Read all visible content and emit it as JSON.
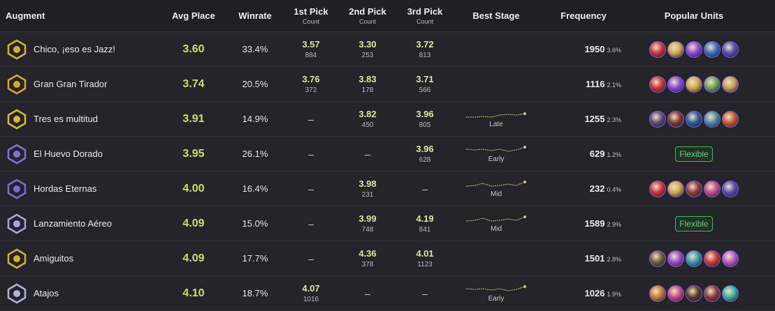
{
  "header": {
    "augment": "Augment",
    "avg_place": "Avg Place",
    "winrate": "Winrate",
    "pick1": "1st Pick",
    "pick1_sub": "Count",
    "pick2": "2nd Pick",
    "pick2_sub": "Count",
    "pick3": "3rd Pick",
    "pick3_sub": "Count",
    "best_stage": "Best Stage",
    "frequency": "Frequency",
    "popular_units": "Popular Units"
  },
  "rows": [
    {
      "name": "Chico, ¡eso es Jazz!",
      "avg": "3.60",
      "win": "33.4%",
      "p1": "3.57",
      "c1": "884",
      "p2": "3.30",
      "c2": "253",
      "p3": "3.72",
      "c3": "813",
      "stage": "",
      "freq": "1950",
      "freq_pct": "3.6%",
      "flexible": "",
      "units": [
        "#c8343a",
        "#d0a850",
        "#8a4ad8",
        "#3a6cc0",
        "#5a4ab0"
      ]
    },
    {
      "name": "Gran Gran Tirador",
      "avg": "3.74",
      "win": "20.5%",
      "p1": "3.76",
      "c1": "372",
      "p2": "3.83",
      "c2": "178",
      "p3": "3.71",
      "c3": "566",
      "stage": "",
      "freq": "1116",
      "freq_pct": "2.1%",
      "flexible": "",
      "units": [
        "#c8343a",
        "#8a4ad8",
        "#d0a850",
        "#6aa060",
        "#c89a60"
      ]
    },
    {
      "name": "Tres es multitud",
      "avg": "3.91",
      "win": "14.9%",
      "p1": "–",
      "c1": "",
      "p2": "3.82",
      "c2": "450",
      "p3": "3.96",
      "c3": "805",
      "stage": "Late",
      "freq": "1255",
      "freq_pct": "2.3%",
      "flexible": "",
      "units": [
        "#5a4a7a",
        "#7a3a2a",
        "#2a5aa0",
        "#4a8aa8",
        "#c85a2a"
      ]
    },
    {
      "name": "El Huevo Dorado",
      "avg": "3.95",
      "win": "26.1%",
      "p1": "–",
      "c1": "",
      "p2": "–",
      "c2": "",
      "p3": "3.96",
      "c3": "628",
      "stage": "Early",
      "freq": "629",
      "freq_pct": "1.2%",
      "flexible": "Flexible",
      "units": []
    },
    {
      "name": "Hordas Eternas",
      "avg": "4.00",
      "win": "16.4%",
      "p1": "–",
      "c1": "",
      "p2": "3.98",
      "c2": "231",
      "p3": "–",
      "c3": "",
      "stage": "Mid",
      "freq": "232",
      "freq_pct": "0.4%",
      "flexible": "",
      "units": [
        "#c8343a",
        "#d0a850",
        "#8a3a3a",
        "#c84a8a",
        "#5a4ab0"
      ]
    },
    {
      "name": "Lanzamiento Aéreo",
      "avg": "4.09",
      "win": "15.0%",
      "p1": "–",
      "c1": "",
      "p2": "3.99",
      "c2": "748",
      "p3": "4.19",
      "c3": "841",
      "stage": "Mid",
      "freq": "1589",
      "freq_pct": "2.9%",
      "flexible": "Flexible",
      "units": []
    },
    {
      "name": "Amiguitos",
      "avg": "4.09",
      "win": "17.7%",
      "p1": "–",
      "c1": "",
      "p2": "4.36",
      "c2": "378",
      "p3": "4.01",
      "c3": "1123",
      "stage": "",
      "freq": "1501",
      "freq_pct": "2.8%",
      "flexible": "",
      "units": [
        "#6a5a3a",
        "#9a4ac8",
        "#3a9ab0",
        "#c83a3a",
        "#b85ac8"
      ]
    },
    {
      "name": "Atajos",
      "avg": "4.10",
      "win": "18.7%",
      "p1": "4.07",
      "c1": "1016",
      "p2": "–",
      "c2": "",
      "p3": "–",
      "c3": "",
      "stage": "Early",
      "freq": "1026",
      "freq_pct": "1.9%",
      "flexible": "",
      "units": [
        "#c87a3a",
        "#c84a8a",
        "#5a3a2a",
        "#8a3a3a",
        "#3ab0a0"
      ]
    }
  ],
  "icons": [
    "jazz-augment-icon",
    "tirador-augment-icon",
    "tres-augment-icon",
    "huevo-augment-icon",
    "hordas-augment-icon",
    "lanzamiento-augment-icon",
    "amiguitos-augment-icon",
    "atajos-augment-icon"
  ],
  "colors": {
    "background": "#24242a",
    "avg": "#c8e06a",
    "pick": "#d9e89a",
    "flexible": "#5fd66a",
    "stage_line": "#d8c27a"
  }
}
